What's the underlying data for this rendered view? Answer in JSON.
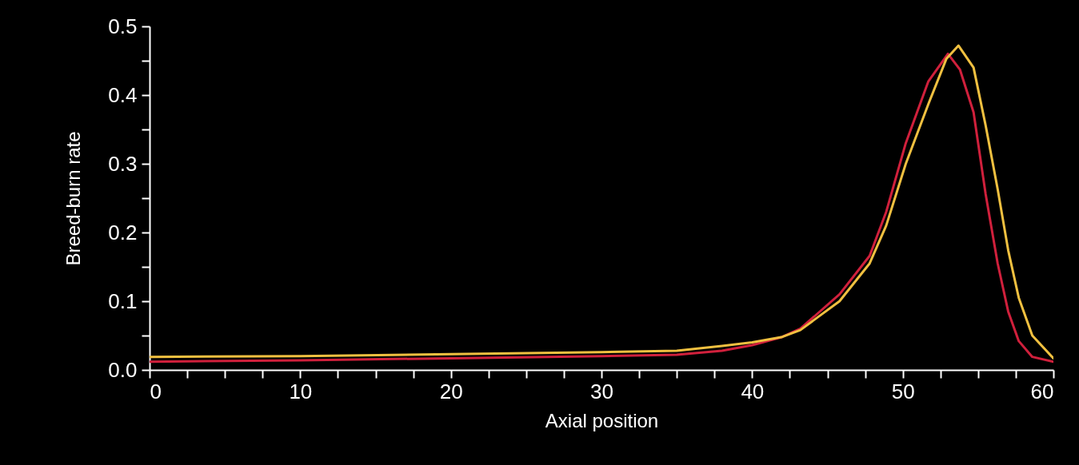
{
  "chart_data": {
    "type": "line",
    "xlabel": "Axial position",
    "ylabel": "Breed-burn rate",
    "xlim": [
      0,
      60
    ],
    "ylim": [
      0,
      0.5
    ],
    "xticks": [
      0,
      {
        "value": 2.5,
        "label": null
      },
      {
        "value": 5,
        "label": null
      },
      {
        "value": 7.5,
        "label": null
      },
      10,
      {
        "value": 12.5,
        "label": null
      },
      {
        "value": 15,
        "label": null
      },
      {
        "value": 17.5,
        "label": null
      },
      20,
      {
        "value": 22.5,
        "label": null
      },
      {
        "value": 25,
        "label": null
      },
      {
        "value": 27.5,
        "label": null
      },
      30,
      {
        "value": 32.5,
        "label": null
      },
      {
        "value": 35,
        "label": null
      },
      {
        "value": 37.5,
        "label": null
      },
      40,
      {
        "value": 42.5,
        "label": null
      },
      {
        "value": 45,
        "label": null
      },
      {
        "value": 47.5,
        "label": null
      },
      50,
      {
        "value": 52.5,
        "label": null
      },
      {
        "value": 55,
        "label": null
      },
      {
        "value": 57.5,
        "label": null
      },
      60
    ],
    "yticks": [
      {
        "value": 0,
        "label": "0.0"
      },
      {
        "value": 0.05,
        "label": null
      },
      0.1,
      {
        "value": 0.15,
        "label": null
      },
      0.2,
      {
        "value": 0.25,
        "label": null
      },
      0.3,
      {
        "value": 0.35,
        "label": null
      },
      0.4,
      {
        "value": 0.45,
        "label": null
      },
      0.5
    ],
    "grid": false,
    "legend": false,
    "marker": "none",
    "line_style": "solid",
    "series": [
      {
        "color": "#d0203c",
        "x": [
          0,
          10,
          20,
          30,
          35,
          38,
          40,
          42,
          43.2,
          45.8,
          47.8,
          48.9,
          50.2,
          51.7,
          53.0,
          53.8,
          54.7,
          55.5,
          56.3,
          57.0,
          57.7,
          58.6,
          60
        ],
        "values": [
          0.012,
          0.014,
          0.017,
          0.02,
          0.022,
          0.028,
          0.036,
          0.048,
          0.06,
          0.11,
          0.166,
          0.23,
          0.33,
          0.42,
          0.46,
          0.437,
          0.375,
          0.256,
          0.155,
          0.085,
          0.042,
          0.019,
          0.012
        ]
      },
      {
        "color": "#f0c040",
        "x": [
          0,
          10,
          20,
          30,
          35,
          38,
          40,
          42,
          43.2,
          45.8,
          47.8,
          48.9,
          50.2,
          51.7,
          52.9,
          53.7,
          54.7,
          55.5,
          56.3,
          57.0,
          57.7,
          58.6,
          60
        ],
        "values": [
          0.019,
          0.02,
          0.023,
          0.026,
          0.028,
          0.035,
          0.04,
          0.048,
          0.058,
          0.1,
          0.155,
          0.21,
          0.3,
          0.387,
          0.453,
          0.472,
          0.44,
          0.356,
          0.263,
          0.174,
          0.105,
          0.05,
          0.017
        ]
      }
    ]
  }
}
